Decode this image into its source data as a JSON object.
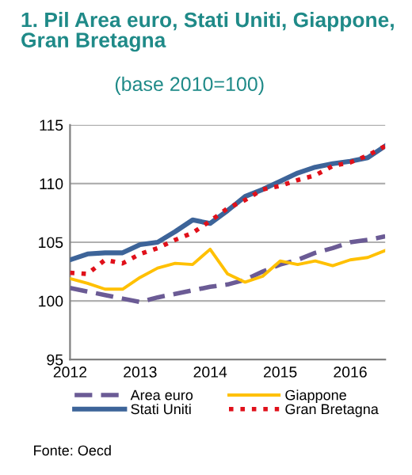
{
  "chart_data": {
    "type": "line",
    "title": "1. Pil Area euro, Stati Uniti, Giappone,\nGran Bretagna",
    "subtitle": "(base 2010=100)",
    "x": [
      2012,
      2012.25,
      2012.5,
      2012.75,
      2013,
      2013.25,
      2013.5,
      2013.75,
      2014,
      2014.25,
      2014.5,
      2014.75,
      2015,
      2015.25,
      2015.5,
      2015.75,
      2016,
      2016.25,
      2016.5
    ],
    "series": [
      {
        "name": "Area euro",
        "color": "#6b5b95",
        "line_style": "dashed",
        "values": [
          101.1,
          100.8,
          100.5,
          100.2,
          99.9,
          100.3,
          100.6,
          100.9,
          101.2,
          101.4,
          101.8,
          102.5,
          103.1,
          103.5,
          104.1,
          104.5,
          105.0,
          105.2,
          105.5
        ]
      },
      {
        "name": "Stati Uniti",
        "color": "#3d6499",
        "line_style": "solid",
        "values": [
          103.5,
          104.0,
          104.1,
          104.1,
          104.8,
          105.0,
          105.9,
          106.9,
          106.6,
          107.7,
          108.9,
          109.5,
          110.2,
          110.9,
          111.4,
          111.7,
          111.9,
          112.2,
          113.2
        ]
      },
      {
        "name": "Giappone",
        "color": "#ffc000",
        "line_style": "solid",
        "values": [
          101.9,
          101.5,
          101.0,
          101.0,
          102.0,
          102.8,
          103.2,
          103.1,
          104.4,
          102.3,
          101.6,
          102.1,
          103.4,
          103.1,
          103.4,
          103.0,
          103.5,
          103.7,
          104.3
        ]
      },
      {
        "name": "Gran Bretagna",
        "color": "#e0101a",
        "line_style": "dotted",
        "values": [
          102.4,
          102.3,
          103.5,
          103.2,
          104.0,
          104.5,
          105.2,
          105.8,
          106.8,
          107.9,
          108.6,
          109.5,
          109.8,
          110.3,
          110.7,
          111.5,
          111.8,
          112.4,
          113.2
        ]
      }
    ],
    "xlim": [
      2012,
      2016.5
    ],
    "xticks": [
      2012,
      2013,
      2014,
      2015,
      2016
    ],
    "ylim": [
      95,
      115
    ],
    "yticks": [
      95,
      100,
      105,
      110,
      115
    ],
    "grid": "y",
    "legend": "bottom",
    "marker": "none",
    "annotations": [
      "Fonte: Oecd"
    ]
  }
}
